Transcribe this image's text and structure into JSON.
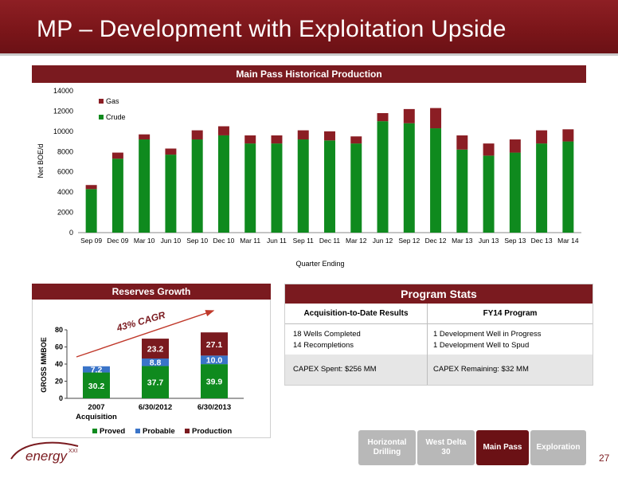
{
  "slide": {
    "title": "MP – Development with Exploitation Upside",
    "page_number": "27"
  },
  "colors": {
    "maroon": "#7a1a1f",
    "gas": "#8b1e24",
    "crude": "#0f8a1e",
    "probable": "#3a74c8",
    "production": "#7a1a1f"
  },
  "chart_data": [
    {
      "type": "bar",
      "stacked": true,
      "title": "Main Pass Historical Production",
      "xlabel": "Quarter Ending",
      "ylabel": "Net BOE/d",
      "ylim": [
        0,
        14000
      ],
      "yticks": [
        0,
        2000,
        4000,
        6000,
        8000,
        10000,
        12000,
        14000
      ],
      "legend_position": "top-left",
      "grid": false,
      "categories": [
        "Sep 09",
        "Dec 09",
        "Mar 10",
        "Jun 10",
        "Sep 10",
        "Dec 10",
        "Mar 11",
        "Jun 11",
        "Sep 11",
        "Dec 11",
        "Mar 12",
        "Jun 12",
        "Sep 12",
        "Dec 12",
        "Mar 13",
        "Jun 13",
        "Sep 13",
        "Dec 13",
        "Mar 14"
      ],
      "series": [
        {
          "name": "Crude",
          "values": [
            4300,
            7300,
            9200,
            7700,
            9200,
            9600,
            8800,
            8800,
            9200,
            9100,
            8800,
            11000,
            10800,
            10300,
            8200,
            7600,
            7900,
            8800,
            9000
          ]
        },
        {
          "name": "Gas",
          "values": [
            400,
            600,
            500,
            600,
            900,
            900,
            800,
            800,
            900,
            900,
            700,
            800,
            1400,
            2000,
            1400,
            1200,
            1300,
            1300,
            1200
          ]
        }
      ]
    },
    {
      "type": "bar",
      "stacked": true,
      "title": "Reserves Growth",
      "ylabel": "GROSS MMBOE",
      "ylim": [
        0,
        80
      ],
      "yticks": [
        0,
        20,
        40,
        60,
        80
      ],
      "legend_position": "bottom",
      "annotation": "43% CAGR",
      "categories": [
        "2007 Acquisition",
        "6/30/2012",
        "6/30/2013"
      ],
      "series": [
        {
          "name": "Proved",
          "values": [
            30.2,
            37.7,
            39.9
          ],
          "labels": [
            "30.2",
            "37.7",
            "39.9"
          ]
        },
        {
          "name": "Probable",
          "values": [
            7.2,
            8.8,
            10.0
          ],
          "labels": [
            "7.2",
            "8.8",
            "10.0"
          ]
        },
        {
          "name": "Production",
          "values": [
            0,
            23.2,
            27.1
          ],
          "labels": [
            "",
            "23.2",
            "27.1"
          ]
        }
      ]
    }
  ],
  "program_stats": {
    "title": "Program Stats",
    "col1_header": "Acquisition-to-Date Results",
    "col2_header": "FY14 Program",
    "col1_row1_line1": "18 Wells Completed",
    "col1_row1_line2": "14 Recompletions",
    "col2_row1_line1": "1 Development Well in Progress",
    "col2_row1_line2": "1 Development Well to Spud",
    "col1_row2": "CAPEX Spent: $256 MM",
    "col2_row2": "CAPEX Remaining: $32 MM"
  },
  "nav": {
    "horizontal_line1": "Horizontal",
    "horizontal_line2": "Drilling",
    "westdelta_line1": "West Delta",
    "westdelta_line2": "30",
    "mainpass": "Main Pass",
    "exploration": "Exploration"
  },
  "logo": {
    "text": "energy",
    "superscript": "XXI"
  }
}
